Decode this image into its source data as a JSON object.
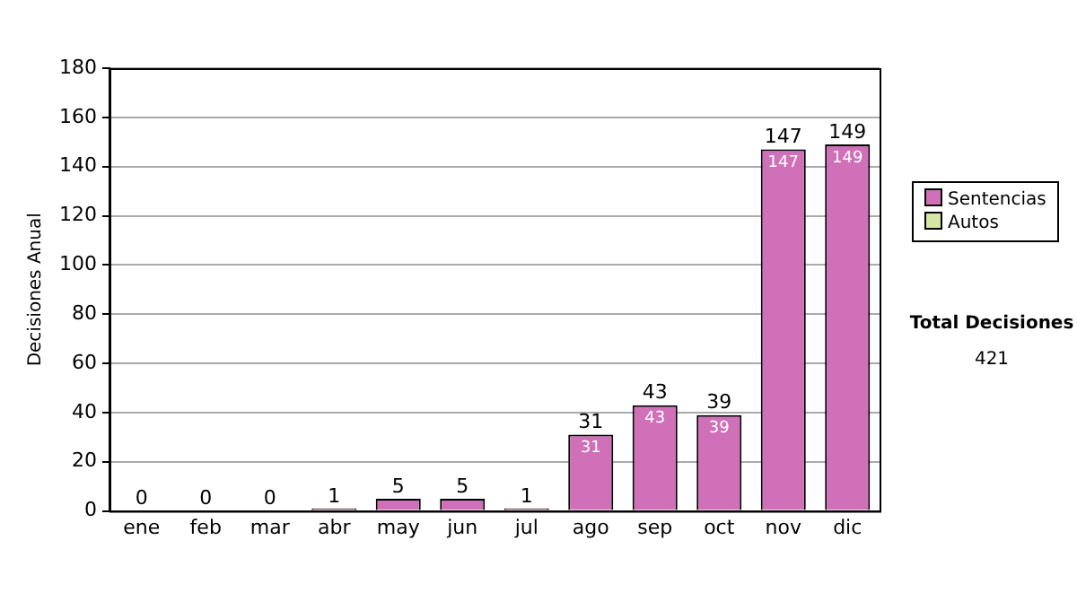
{
  "chart_data": {
    "type": "bar",
    "ylabel": "Decisiones Anual",
    "categories": [
      "ene",
      "feb",
      "mar",
      "abr",
      "may",
      "jun",
      "jul",
      "ago",
      "sep",
      "oct",
      "nov",
      "dic"
    ],
    "series": [
      {
        "name": "Sentencias",
        "color": "#d070b8",
        "values": [
          0,
          0,
          0,
          1,
          5,
          5,
          1,
          31,
          43,
          39,
          147,
          149
        ],
        "value_labels": [
          null,
          null,
          null,
          null,
          null,
          null,
          null,
          "31",
          "43",
          "39",
          "147",
          "149"
        ]
      },
      {
        "name": "Autos",
        "color": "#d4e6a0",
        "values": [
          0,
          0,
          0,
          0,
          0,
          0,
          0,
          0,
          0,
          0,
          0,
          0
        ]
      }
    ],
    "stacked": true,
    "ylim": [
      0,
      180
    ],
    "yticks": [
      0,
      20,
      40,
      60,
      80,
      100,
      120,
      140,
      160,
      180
    ],
    "grid": "y",
    "legend": "right",
    "totals": [
      "0",
      "0",
      "0",
      "1",
      "5",
      "5",
      "1",
      "31",
      "43",
      "39",
      "147",
      "149"
    ],
    "annotations": [
      "Total Decisiones",
      "421"
    ]
  }
}
